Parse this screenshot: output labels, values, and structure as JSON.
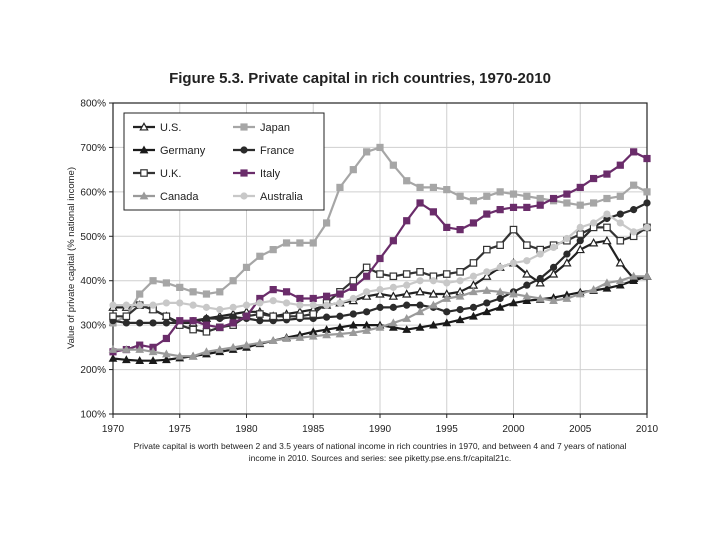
{
  "chart_data": {
    "type": "line",
    "title": "Figure 5.3. Private capital in rich countries, 1970-2010",
    "xlabel": "",
    "ylabel": "Value of private capital (% national income)",
    "caption": "Private capital is worth between 2 and 3.5 years of national income in rich countries in 1970, and between 4 and 7 years of national income in 2010. Sources and series: see piketty.pse.ens.fr/capital21c.",
    "xlim": [
      1970,
      2010
    ],
    "ylim": [
      100,
      800
    ],
    "xticks": [
      1970,
      1975,
      1980,
      1985,
      1990,
      1995,
      2000,
      2005,
      2010
    ],
    "yticks": [
      100,
      200,
      300,
      400,
      500,
      600,
      700,
      800
    ],
    "ytick_labels": [
      "100%",
      "200%",
      "300%",
      "400%",
      "500%",
      "600%",
      "700%",
      "800%"
    ],
    "grid": true,
    "legend_position": "top-left",
    "x": [
      1970,
      1971,
      1972,
      1973,
      1974,
      1975,
      1976,
      1977,
      1978,
      1979,
      1980,
      1981,
      1982,
      1983,
      1984,
      1985,
      1986,
      1987,
      1988,
      1989,
      1990,
      1991,
      1992,
      1993,
      1994,
      1995,
      1996,
      1997,
      1998,
      1999,
      2000,
      2001,
      2002,
      2003,
      2004,
      2005,
      2006,
      2007,
      2008,
      2009,
      2010
    ],
    "series": [
      {
        "name": "U.S.",
        "color": "#222222",
        "marker": "triangle-open",
        "values": [
          340,
          340,
          345,
          335,
          320,
          305,
          305,
          315,
          320,
          325,
          330,
          330,
          320,
          325,
          330,
          335,
          345,
          350,
          355,
          365,
          370,
          365,
          370,
          375,
          370,
          370,
          375,
          390,
          410,
          430,
          440,
          415,
          395,
          415,
          440,
          470,
          485,
          490,
          440,
          405,
          410
        ]
      },
      {
        "name": "Japan",
        "color": "#a6a6a6",
        "marker": "square",
        "values": [
          305,
          320,
          370,
          400,
          395,
          385,
          375,
          370,
          375,
          400,
          430,
          455,
          470,
          485,
          485,
          485,
          530,
          610,
          650,
          690,
          700,
          660,
          625,
          610,
          610,
          605,
          590,
          580,
          590,
          600,
          595,
          590,
          585,
          580,
          575,
          570,
          575,
          585,
          590,
          615,
          600
        ]
      },
      {
        "name": "Germany",
        "color": "#1a1a1a",
        "marker": "triangle",
        "values": [
          225,
          222,
          220,
          220,
          222,
          226,
          230,
          235,
          240,
          245,
          250,
          258,
          265,
          272,
          278,
          285,
          290,
          295,
          300,
          300,
          300,
          295,
          290,
          295,
          300,
          305,
          312,
          320,
          330,
          340,
          350,
          355,
          358,
          362,
          368,
          374,
          378,
          383,
          390,
          400,
          410
        ]
      },
      {
        "name": "France",
        "color": "#2b2b2b",
        "marker": "circle",
        "values": [
          310,
          305,
          305,
          305,
          305,
          305,
          310,
          315,
          315,
          318,
          315,
          310,
          310,
          312,
          315,
          315,
          318,
          320,
          325,
          330,
          340,
          340,
          345,
          345,
          340,
          330,
          335,
          340,
          350,
          360,
          375,
          390,
          405,
          430,
          460,
          490,
          520,
          540,
          550,
          560,
          575
        ]
      },
      {
        "name": "U.K.",
        "color": "#333333",
        "marker": "square-open",
        "values": [
          320,
          320,
          345,
          335,
          320,
          300,
          290,
          285,
          295,
          300,
          320,
          325,
          320,
          320,
          320,
          325,
          350,
          375,
          400,
          430,
          415,
          410,
          415,
          420,
          410,
          415,
          420,
          440,
          470,
          480,
          515,
          480,
          470,
          480,
          490,
          505,
          520,
          520,
          490,
          500,
          520
        ]
      },
      {
        "name": "Italy",
        "color": "#6a2c6a",
        "marker": "square",
        "values": [
          240,
          245,
          255,
          250,
          270,
          310,
          310,
          300,
          295,
          305,
          320,
          360,
          380,
          375,
          360,
          360,
          365,
          370,
          385,
          410,
          450,
          490,
          535,
          575,
          555,
          520,
          515,
          530,
          550,
          560,
          565,
          565,
          570,
          585,
          595,
          610,
          630,
          640,
          660,
          690,
          675
        ]
      },
      {
        "name": "Canada",
        "color": "#9a9a9a",
        "marker": "triangle",
        "values": [
          245,
          245,
          245,
          240,
          235,
          230,
          230,
          240,
          245,
          250,
          255,
          260,
          265,
          270,
          272,
          275,
          278,
          280,
          283,
          288,
          295,
          305,
          315,
          330,
          345,
          360,
          365,
          375,
          378,
          375,
          370,
          365,
          360,
          355,
          360,
          370,
          380,
          395,
          400,
          410,
          410
        ]
      },
      {
        "name": "Australia",
        "color": "#c8c8c8",
        "marker": "circle",
        "values": [
          345,
          345,
          345,
          345,
          350,
          350,
          345,
          340,
          335,
          340,
          345,
          350,
          355,
          350,
          345,
          345,
          345,
          350,
          360,
          375,
          380,
          385,
          390,
          400,
          400,
          395,
          400,
          410,
          420,
          430,
          440,
          445,
          460,
          475,
          495,
          520,
          530,
          550,
          530,
          510,
          520
        ]
      }
    ]
  }
}
